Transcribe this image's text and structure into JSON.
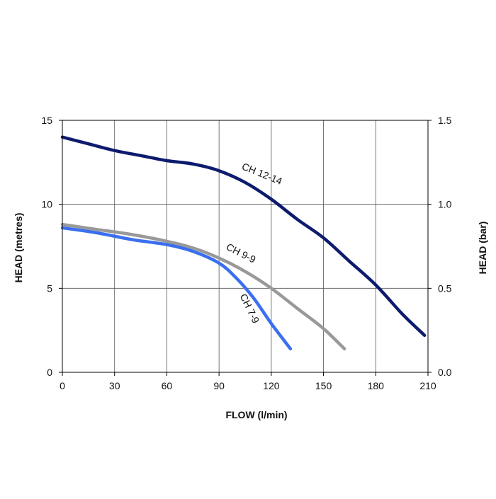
{
  "chart_data": {
    "type": "line",
    "title": "",
    "xlabel": "FLOW (l/min)",
    "ylabel": "HEAD (metres)",
    "y2label": "HEAD (bar)",
    "xlim": [
      0,
      210
    ],
    "ylim": [
      0,
      15
    ],
    "y2lim": [
      0,
      1.5
    ],
    "x_ticks": [
      "0",
      "30",
      "60",
      "90",
      "120",
      "150",
      "180",
      "210"
    ],
    "y_ticks": [
      "0",
      "5",
      "10",
      "15"
    ],
    "y2_ticks": [
      "0.0",
      "0.5",
      "1.0",
      "1.5"
    ],
    "grid": true,
    "series": [
      {
        "name": "CH 12-14",
        "color": "#0d1b6e",
        "points": [
          [
            0,
            14.0
          ],
          [
            15,
            13.6
          ],
          [
            30,
            13.2
          ],
          [
            45,
            12.9
          ],
          [
            60,
            12.6
          ],
          [
            75,
            12.4
          ],
          [
            90,
            12.0
          ],
          [
            105,
            11.3
          ],
          [
            120,
            10.3
          ],
          [
            135,
            9.1
          ],
          [
            150,
            8.0
          ],
          [
            165,
            6.6
          ],
          [
            180,
            5.2
          ],
          [
            195,
            3.5
          ],
          [
            208,
            2.2
          ]
        ]
      },
      {
        "name": "CH 9-9",
        "color": "#999999",
        "points": [
          [
            0,
            8.8
          ],
          [
            20,
            8.5
          ],
          [
            40,
            8.2
          ],
          [
            60,
            7.8
          ],
          [
            75,
            7.4
          ],
          [
            90,
            6.8
          ],
          [
            105,
            6.0
          ],
          [
            120,
            5.0
          ],
          [
            135,
            3.8
          ],
          [
            150,
            2.6
          ],
          [
            162,
            1.4
          ]
        ]
      },
      {
        "name": "CH 7-9",
        "color": "#3a6ff0",
        "points": [
          [
            0,
            8.6
          ],
          [
            20,
            8.3
          ],
          [
            40,
            7.9
          ],
          [
            60,
            7.6
          ],
          [
            75,
            7.2
          ],
          [
            90,
            6.5
          ],
          [
            100,
            5.6
          ],
          [
            110,
            4.4
          ],
          [
            120,
            2.9
          ],
          [
            131,
            1.4
          ]
        ]
      }
    ]
  }
}
